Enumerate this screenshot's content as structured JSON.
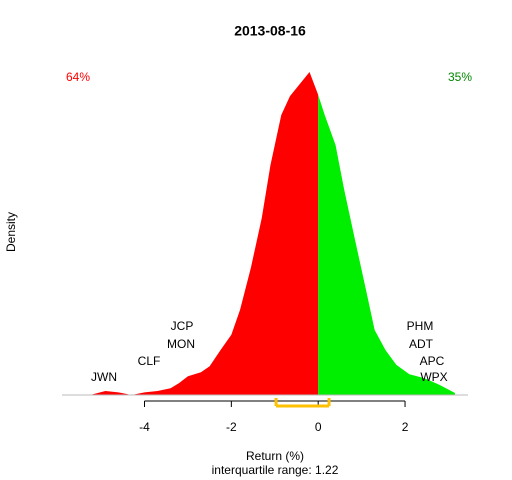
{
  "chart_data": {
    "type": "density",
    "title": "2013-08-16",
    "x_label": "Return (%)",
    "subtitle": "interquartile range: 1.22",
    "y_label": "Density",
    "xlim": [
      -5.9,
      3.45
    ],
    "ylim": [
      0,
      0.5
    ],
    "xticks": [
      -4,
      -2,
      0,
      2
    ],
    "series": [
      {
        "color": "#ff0000",
        "x": [
          -5.2,
          -4.9,
          -4.6,
          -4.3,
          -4.0,
          -3.7,
          -3.4,
          -3.2,
          -3.0,
          -2.7,
          -2.5,
          -2.25,
          -2.0,
          -1.8,
          -1.55,
          -1.3,
          -1.1,
          -0.85,
          -0.65,
          -0.4,
          -0.2,
          0
        ],
        "values": [
          0.001,
          0.006,
          0.004,
          0,
          0.004,
          0.006,
          0.01,
          0.018,
          0.028,
          0.034,
          0.043,
          0.067,
          0.09,
          0.127,
          0.19,
          0.264,
          0.343,
          0.418,
          0.446,
          0.466,
          0.482,
          0.448
        ]
      },
      {
        "color": "#00ee00",
        "x": [
          0,
          0.15,
          0.4,
          0.6,
          0.85,
          1.1,
          1.3,
          1.55,
          1.8,
          2.1,
          2.45,
          2.8,
          3.15
        ],
        "values": [
          0.448,
          0.418,
          0.373,
          0.306,
          0.231,
          0.157,
          0.097,
          0.067,
          0.045,
          0.031,
          0.025,
          0.015,
          0.003
        ]
      }
    ],
    "share_labels": [
      {
        "text": "64%",
        "color": "#ff0000"
      },
      {
        "text": "35%",
        "color": "#008800"
      }
    ],
    "annotations": [
      "JWN",
      "CLF",
      "JCP",
      "MON",
      "PHM",
      "ADT",
      "APC",
      "WPX"
    ],
    "iqr": [
      -0.97,
      0.25
    ],
    "iqr_color": "#ffc000"
  }
}
